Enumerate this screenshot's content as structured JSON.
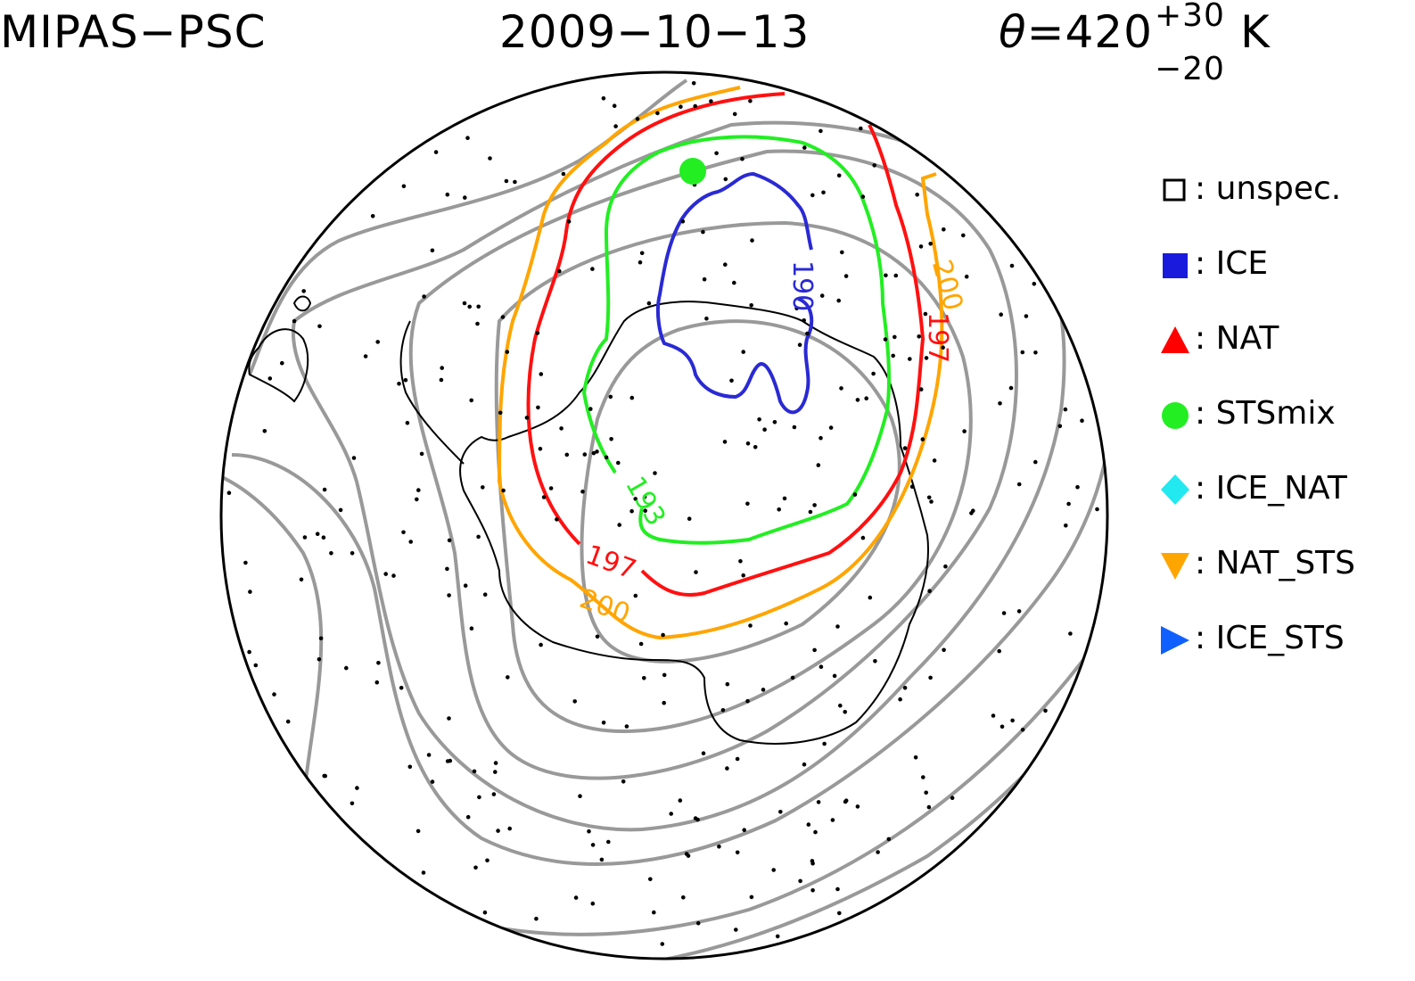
{
  "header": {
    "instrument": "MIPAS−PSC",
    "date": "2009−10−13",
    "theta_symbol": "θ",
    "theta_value": "=420",
    "theta_upper": "+30",
    "theta_lower": "−20",
    "theta_unit": "K"
  },
  "legend": {
    "items": [
      {
        "label": ": unspec.",
        "icon": "open-square-icon",
        "color": "#000000"
      },
      {
        "label": ": ICE",
        "icon": "filled-square-icon",
        "color": "#1a1adc"
      },
      {
        "label": ": NAT",
        "icon": "triangle-up-icon",
        "color": "#ff0000"
      },
      {
        "label": ": STSmix",
        "icon": "circle-icon",
        "color": "#22ee22"
      },
      {
        "label": ": ICE_NAT",
        "icon": "diamond-icon",
        "color": "#22e8f0"
      },
      {
        "label": ": NAT_STS",
        "icon": "triangle-down-icon",
        "color": "#ffa500"
      },
      {
        "label": ": ICE_STS",
        "icon": "triangle-right-icon",
        "color": "#1060ff"
      }
    ]
  },
  "contours": {
    "labels": {
      "ice": "190",
      "sts": "193",
      "nat_right": "197",
      "nat_bottom": "197",
      "natsts_right": "200",
      "natsts_bottom": "200"
    },
    "colors": {
      "ice": "#2a2ad4",
      "sts": "#22ee22",
      "nat": "#ff1010",
      "natsts": "#ffa500",
      "grid": "#999999",
      "coast": "#000000"
    }
  }
}
